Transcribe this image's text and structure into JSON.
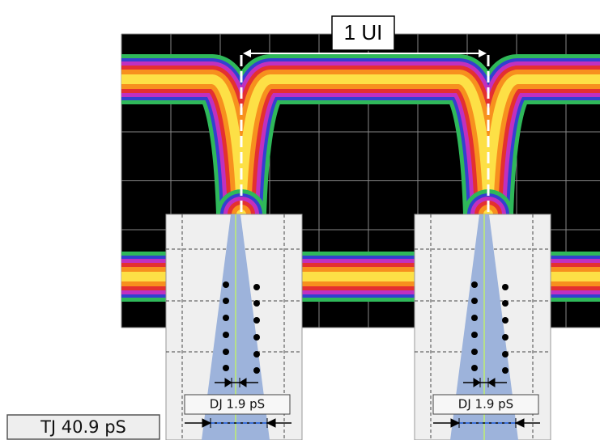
{
  "annotations": {
    "unit_interval": "1 UI",
    "left_dj": "DJ 1.9 pS",
    "right_dj": "DJ 1.9 pS",
    "total_jitter": "TJ 40.9 pS"
  }
}
